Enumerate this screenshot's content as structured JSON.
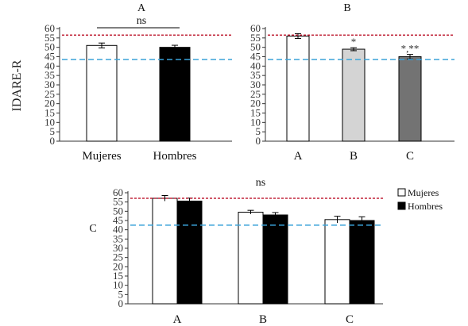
{
  "colors": {
    "mujeres": "#ffffff",
    "hombres": "#000000",
    "group_a": "#ffffff",
    "group_b": "#d4d4d4",
    "group_c": "#737373",
    "ref_red": "#c0243a",
    "ref_blue": "#3ba3d9",
    "axis": "#333333",
    "bar_stroke": "#000000"
  },
  "figure": {
    "ylabel": "IDARE-R"
  },
  "chart_data": [
    {
      "type": "bar",
      "panel_label": "A",
      "categories": [
        "Mujeres",
        "Hombres"
      ],
      "values": [
        51,
        50
      ],
      "errors": [
        1.3,
        1.1
      ],
      "bar_colors": [
        "#ffffff",
        "#000000"
      ],
      "ylim": [
        0,
        60
      ],
      "yticks": [
        "0",
        "5",
        "10",
        "15",
        "20",
        "25",
        "30",
        "35",
        "40",
        "45",
        "50",
        "55",
        "60"
      ],
      "ref_lines": [
        {
          "value": 56.5,
          "color": "#c0243a"
        },
        {
          "value": 43.5,
          "color": "#3ba3d9"
        }
      ],
      "bracket": {
        "from": 0,
        "to": 1,
        "label": "ns"
      }
    },
    {
      "type": "bar",
      "panel_label": "B",
      "categories": [
        "A",
        "B",
        "C"
      ],
      "values": [
        56,
        49,
        45
      ],
      "errors": [
        1.3,
        0.8,
        1.2
      ],
      "bar_colors": [
        "#ffffff",
        "#d4d4d4",
        "#737373"
      ],
      "annotations": [
        "",
        "*",
        "*,**"
      ],
      "ylim": [
        0,
        60
      ],
      "yticks": [
        "0",
        "5",
        "10",
        "15",
        "20",
        "25",
        "30",
        "35",
        "40",
        "45",
        "50",
        "55",
        "60"
      ],
      "ref_lines": [
        {
          "value": 56.5,
          "color": "#c0243a"
        },
        {
          "value": 43.5,
          "color": "#3ba3d9"
        }
      ]
    },
    {
      "type": "bar",
      "panel_label": "C",
      "title": "ns",
      "categories": [
        "A",
        "B",
        "C"
      ],
      "series": [
        {
          "name": "Mujeres",
          "values": [
            57,
            49.5,
            45.5
          ],
          "errors": [
            1.5,
            1.0,
            1.8
          ],
          "color": "#ffffff"
        },
        {
          "name": "Hombres",
          "values": [
            55.5,
            48,
            45
          ],
          "errors": [
            1.6,
            1.3,
            2.0
          ],
          "color": "#000000"
        }
      ],
      "ylim": [
        0,
        60
      ],
      "yticks": [
        "0",
        "5",
        "10",
        "15",
        "20",
        "25",
        "30",
        "35",
        "40",
        "45",
        "50",
        "55",
        "60"
      ],
      "legend": "top-right",
      "ref_lines": [
        {
          "value": 57,
          "color": "#c0243a"
        },
        {
          "value": 42.5,
          "color": "#3ba3d9"
        }
      ]
    }
  ]
}
